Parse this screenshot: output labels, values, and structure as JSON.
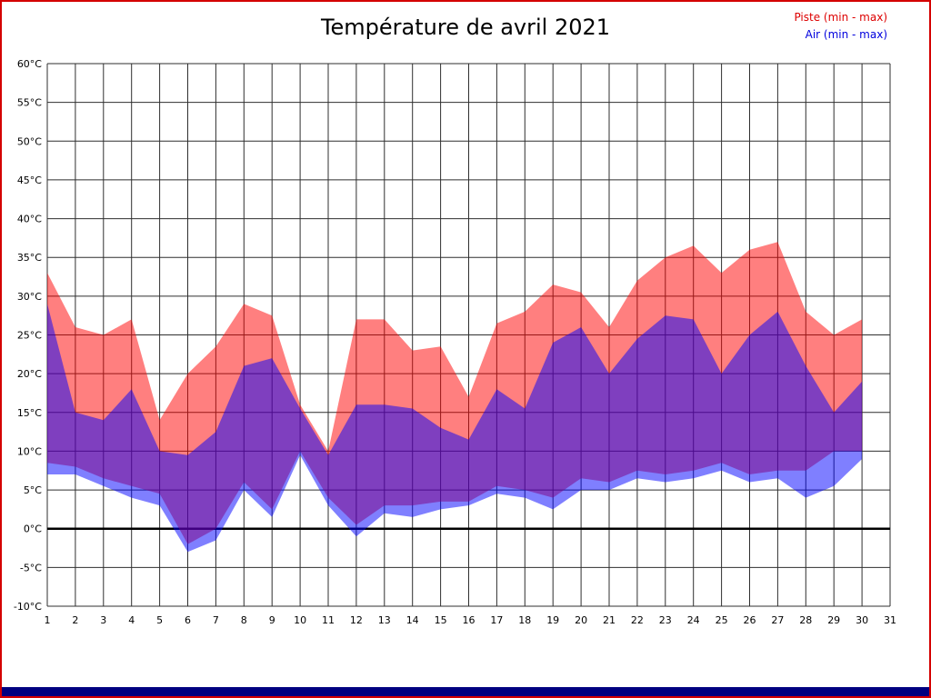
{
  "page": {
    "title": "Température de avril 2021",
    "legend": [
      {
        "label": "Piste (min - max)",
        "color": "#dd0000"
      },
      {
        "label": "Air (min - max)",
        "color": "#0000dd"
      }
    ]
  },
  "frame": {
    "border_color": "#d40000",
    "bottom_bar_color": "#000080"
  },
  "chart_data": {
    "type": "area",
    "title": "Température de avril 2021",
    "xlabel": "",
    "ylabel": "",
    "grid": true,
    "legend_position": "top-right",
    "ylim": [
      -10,
      60
    ],
    "y_tick_step": 5,
    "y_tick_labels": [
      "60°C",
      "55°C",
      "50°C",
      "45°C",
      "40°C",
      "35°C",
      "30°C",
      "25°C",
      "20°C",
      "15°C",
      "10°C",
      "5°C",
      "0°C",
      "-5°C",
      "-10°C"
    ],
    "x_tick_labels": [
      "1",
      "2",
      "3",
      "4",
      "5",
      "6",
      "7",
      "8",
      "9",
      "10",
      "11",
      "12",
      "13",
      "14",
      "15",
      "16",
      "17",
      "18",
      "19",
      "20",
      "21",
      "22",
      "23",
      "24",
      "25",
      "26",
      "27",
      "28",
      "29",
      "30",
      "31"
    ],
    "x": [
      1,
      2,
      3,
      4,
      5,
      6,
      7,
      8,
      9,
      10,
      11,
      12,
      13,
      14,
      15,
      16,
      17,
      18,
      19,
      20,
      21,
      22,
      23,
      24,
      25,
      26,
      27,
      28,
      29,
      30
    ],
    "zero_line": true,
    "series": [
      {
        "key": "piste",
        "name": "Piste (min - max)",
        "band": "min-max",
        "color": "#ff0000",
        "opacity": 0.5,
        "max": [
          33,
          26,
          25,
          27,
          14,
          20,
          23.5,
          29,
          27.5,
          16,
          10,
          27,
          27,
          23,
          23.5,
          17,
          26.5,
          28,
          31.5,
          30.5,
          26,
          32,
          35,
          36.5,
          33,
          36,
          37,
          28,
          25,
          27
        ],
        "min": [
          8.5,
          8,
          6.5,
          5.5,
          4.5,
          -2,
          0,
          6,
          2.5,
          10,
          4,
          0.5,
          3,
          3,
          3.5,
          3.5,
          5.5,
          5,
          4,
          6.5,
          6,
          7.5,
          7,
          7.5,
          8.5,
          7,
          7.5,
          7.5,
          10,
          10
        ]
      },
      {
        "key": "air",
        "name": "Air (min - max)",
        "band": "min-max",
        "color": "#0000ff",
        "opacity": 0.5,
        "max": [
          29,
          15,
          14,
          18,
          10,
          9.5,
          12.5,
          21,
          22,
          15.5,
          9.5,
          16,
          16,
          15.5,
          13,
          11.5,
          18,
          15.5,
          24,
          26,
          20,
          24.5,
          27.5,
          27,
          20,
          25,
          28,
          21,
          15,
          19
        ],
        "min": [
          7,
          7,
          5.5,
          4,
          3,
          -3,
          -1.5,
          5,
          1.5,
          9.5,
          3,
          -1,
          2,
          1.5,
          2.5,
          3,
          4.5,
          4,
          2.5,
          5,
          5,
          6.5,
          6,
          6.5,
          7.5,
          6,
          6.5,
          4,
          5.5,
          9
        ]
      }
    ]
  }
}
